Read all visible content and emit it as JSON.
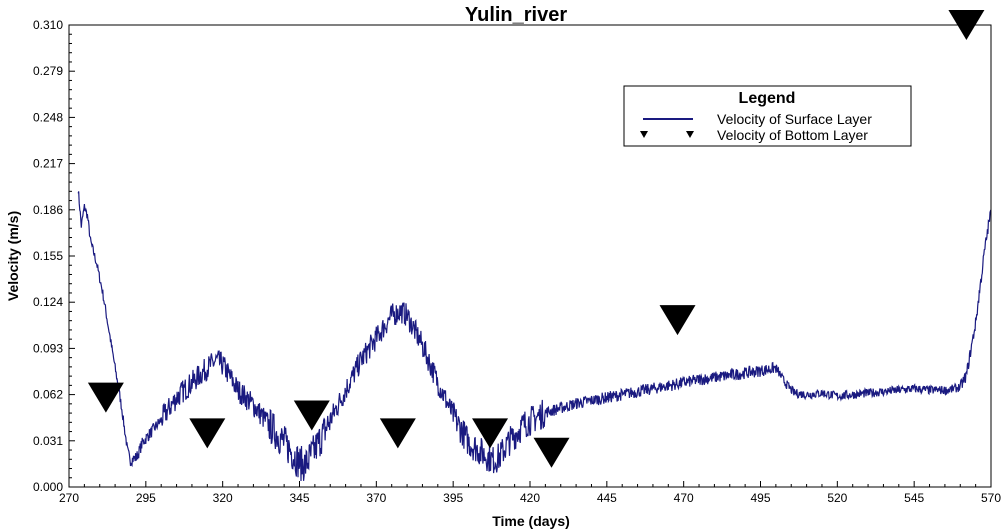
{
  "chart_data": {
    "type": "line",
    "title": "Yulin_river",
    "xlabel": "Time (days)",
    "ylabel": "Velocity (m/s)",
    "xlim": [
      270,
      570
    ],
    "ylim": [
      0,
      0.31
    ],
    "x_ticks": [
      270,
      295,
      320,
      345,
      370,
      395,
      420,
      445,
      470,
      495,
      520,
      545,
      570
    ],
    "y_ticks": [
      "0.000",
      "0.031",
      "0.062",
      "0.093",
      "0.124",
      "0.155",
      "0.186",
      "0.217",
      "0.248",
      "0.279",
      "0.310"
    ],
    "grid": false,
    "legend": {
      "title": "Legend",
      "position": "top-right",
      "entries": [
        "Velocity of Surface Layer",
        "Velocity of Bottom Layer"
      ]
    },
    "series": [
      {
        "name": "Velocity of Surface Layer",
        "style": "line",
        "color": "#1a1a80",
        "x": [
          273,
          274,
          275,
          276,
          277,
          279,
          281,
          283,
          285,
          286,
          287,
          288,
          289,
          290,
          292,
          294,
          296,
          300,
          305,
          310,
          315,
          318,
          320,
          325,
          330,
          335,
          340,
          343,
          345,
          347,
          350,
          355,
          360,
          365,
          370,
          375,
          378,
          380,
          385,
          390,
          395,
          400,
          405,
          408,
          410,
          413,
          418,
          425,
          435,
          445,
          455,
          465,
          475,
          485,
          495,
          500,
          503,
          506,
          510,
          515,
          520,
          525,
          530,
          535,
          540,
          545,
          550,
          556,
          560,
          562,
          565,
          568,
          570
        ],
        "y": [
          0.2,
          0.175,
          0.188,
          0.182,
          0.165,
          0.15,
          0.13,
          0.105,
          0.08,
          0.068,
          0.055,
          0.04,
          0.025,
          0.018,
          0.02,
          0.03,
          0.035,
          0.045,
          0.06,
          0.07,
          0.08,
          0.085,
          0.082,
          0.065,
          0.055,
          0.042,
          0.03,
          0.022,
          0.016,
          0.015,
          0.025,
          0.045,
          0.065,
          0.085,
          0.1,
          0.115,
          0.118,
          0.115,
          0.095,
          0.07,
          0.048,
          0.03,
          0.022,
          0.018,
          0.02,
          0.03,
          0.042,
          0.05,
          0.056,
          0.06,
          0.064,
          0.068,
          0.072,
          0.075,
          0.078,
          0.08,
          0.07,
          0.063,
          0.062,
          0.063,
          0.061,
          0.062,
          0.063,
          0.064,
          0.065,
          0.066,
          0.065,
          0.065,
          0.067,
          0.075,
          0.11,
          0.16,
          0.186
        ]
      },
      {
        "name": "Velocity of Bottom Layer",
        "style": "marker",
        "marker": "triangle-down",
        "color": "#000000",
        "x": [
          282,
          315,
          349,
          377,
          407,
          427,
          468,
          562
        ],
        "y": [
          0.06,
          0.036,
          0.048,
          0.036,
          0.036,
          0.023,
          0.112,
          0.31
        ]
      }
    ]
  }
}
